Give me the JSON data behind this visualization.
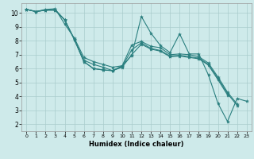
{
  "xlabel": "Humidex (Indice chaleur)",
  "xlim": [
    -0.5,
    23.5
  ],
  "ylim": [
    1.5,
    10.7
  ],
  "xticks": [
    0,
    1,
    2,
    3,
    4,
    5,
    6,
    7,
    8,
    9,
    10,
    11,
    12,
    13,
    14,
    15,
    16,
    17,
    18,
    19,
    20,
    21,
    22,
    23
  ],
  "yticks": [
    2,
    3,
    4,
    5,
    6,
    7,
    8,
    9,
    10
  ],
  "bg_color": "#ceeaea",
  "grid_color": "#aacccc",
  "line_color": "#2a7f7f",
  "series": [
    [
      10.25,
      10.1,
      10.2,
      10.25,
      9.5,
      8.1,
      6.6,
      6.3,
      6.1,
      5.85,
      6.2,
      6.95,
      9.75,
      8.55,
      7.65,
      7.15,
      8.5,
      7.05,
      7.05,
      5.55,
      3.5,
      2.2,
      3.85,
      3.65
    ],
    [
      10.25,
      10.1,
      10.25,
      10.3,
      9.2,
      8.2,
      6.8,
      6.5,
      6.3,
      6.1,
      6.2,
      7.7,
      7.95,
      7.6,
      7.5,
      7.0,
      7.05,
      7.0,
      6.85,
      6.4,
      5.4,
      4.3,
      3.45,
      null
    ],
    [
      10.25,
      10.1,
      10.2,
      10.2,
      9.5,
      8.1,
      6.5,
      6.0,
      5.9,
      5.85,
      6.15,
      7.35,
      7.85,
      7.45,
      7.3,
      6.9,
      6.95,
      6.85,
      6.75,
      6.3,
      5.3,
      4.2,
      3.35,
      null
    ],
    [
      10.25,
      10.1,
      10.2,
      10.2,
      9.5,
      8.1,
      6.5,
      6.0,
      5.9,
      5.85,
      6.1,
      7.0,
      7.75,
      7.4,
      7.25,
      6.85,
      6.9,
      6.8,
      6.7,
      6.25,
      5.2,
      4.1,
      null,
      null
    ]
  ]
}
